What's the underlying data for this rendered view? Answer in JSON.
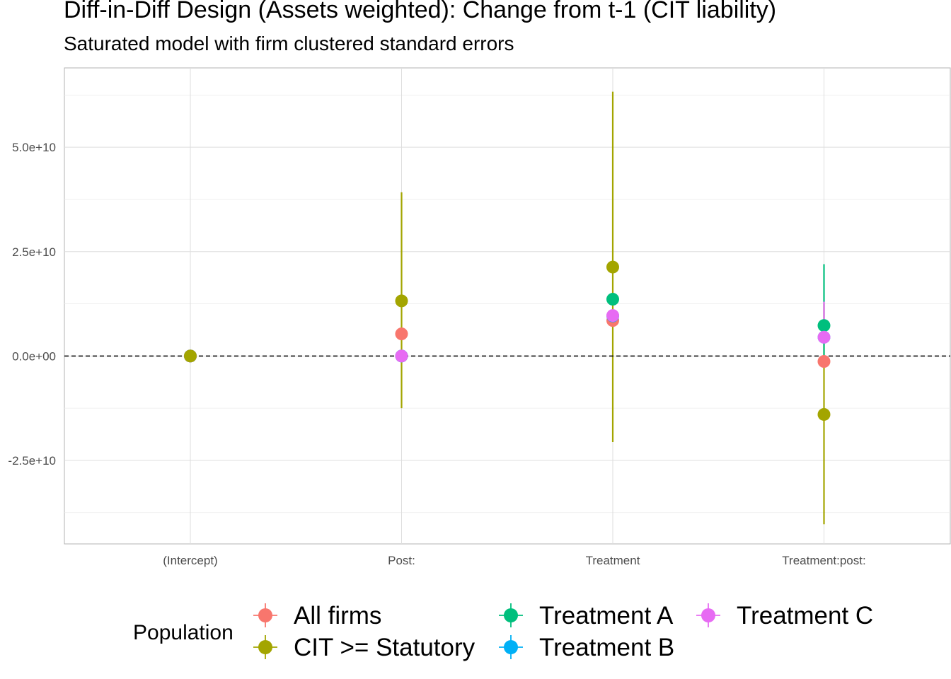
{
  "title": "Diff-in-Diff Design (Assets weighted): Change from t-1 (CIT liability)",
  "subtitle": "Saturated model with firm clustered standard errors",
  "chart_data": {
    "type": "scatter",
    "title": "Diff-in-Diff Design (Assets weighted): Change from t-1 (CIT liability)",
    "subtitle": "Saturated model with firm clustered standard errors",
    "xlabel": "",
    "ylabel": "",
    "categories": [
      "(Intercept)",
      "Post:",
      "Treatment",
      "Treatment:post:"
    ],
    "y_ticks": [
      -25000000000,
      0,
      25000000000,
      50000000000
    ],
    "y_tick_labels": [
      "-2.5e+10",
      "0.0e+00",
      "2.5e+10",
      "5.0e+10"
    ],
    "ylim": [
      -45000000000,
      69000000000
    ],
    "reference_line": {
      "y": 0,
      "style": "dashed"
    },
    "grid": true,
    "legend": {
      "title": "Population",
      "position": "bottom"
    },
    "series": [
      {
        "name": "All firms",
        "color": "#F8766D",
        "values": [
          0,
          5300000000,
          8500000000,
          -1300000000
        ],
        "ci_low": [
          0,
          5300000000,
          8500000000,
          -1300000000
        ],
        "ci_high": [
          0,
          5300000000,
          8500000000,
          -1300000000
        ]
      },
      {
        "name": "CIT >= Statutory",
        "color": "#A3A500",
        "values": [
          0,
          13200000000,
          21300000000,
          -14000000000
        ],
        "ci_low": [
          0,
          -12500000000,
          -20600000000,
          -40300000000
        ],
        "ci_high": [
          0,
          39200000000,
          63300000000,
          12500000000
        ]
      },
      {
        "name": "Treatment A",
        "color": "#00BF7D",
        "values": [
          0,
          0,
          13600000000,
          7300000000
        ],
        "ci_low": [
          0,
          0,
          13600000000,
          0
        ],
        "ci_high": [
          0,
          0,
          13600000000,
          22000000000
        ]
      },
      {
        "name": "Treatment B",
        "color": "#00B0F6",
        "values": [
          0,
          0,
          9600000000,
          4500000000
        ],
        "ci_low": [
          0,
          0,
          9600000000,
          4500000000
        ],
        "ci_high": [
          0,
          0,
          9600000000,
          4500000000
        ]
      },
      {
        "name": "Treatment C",
        "color": "#E76BF3",
        "values": [
          0,
          0,
          9700000000,
          4500000000
        ],
        "ci_low": [
          0,
          0,
          9700000000,
          3000000000
        ],
        "ci_high": [
          0,
          0,
          9700000000,
          13000000000
        ]
      }
    ]
  }
}
